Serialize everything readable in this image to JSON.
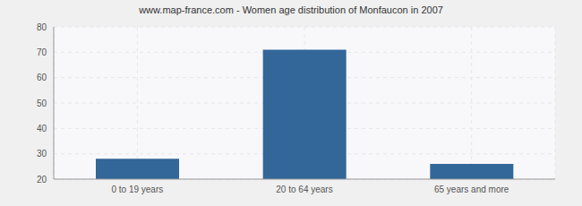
{
  "chart_data": {
    "type": "bar",
    "title": "www.map-france.com - Women age distribution of Monfaucon in 2007",
    "categories": [
      "0 to 19 years",
      "20 to 64 years",
      "65 years and more"
    ],
    "values": [
      28,
      71,
      26
    ],
    "color": "#336699",
    "ylim": [
      20,
      80
    ],
    "yticks": [
      20,
      30,
      40,
      50,
      60,
      70,
      80
    ],
    "grid": true
  }
}
